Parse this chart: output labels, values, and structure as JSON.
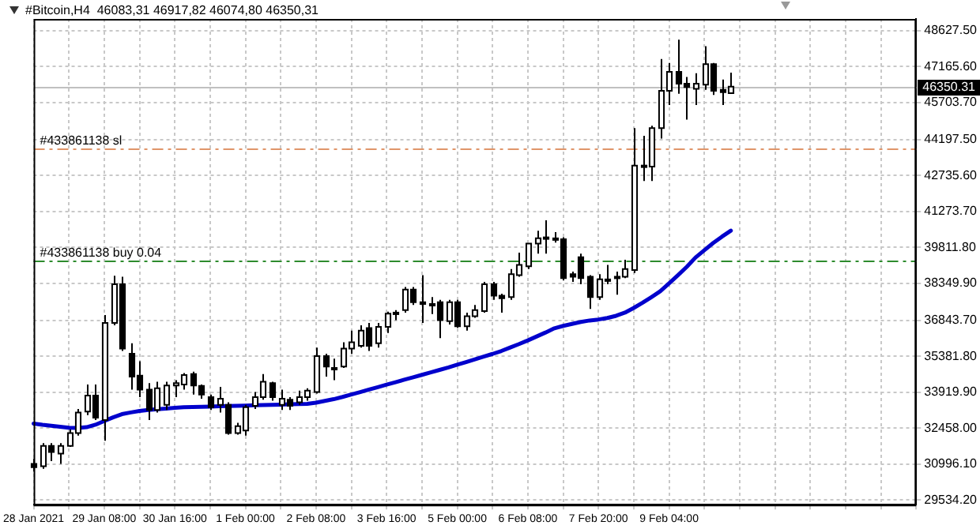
{
  "chart_data": {
    "type": "candlestick",
    "title": "#Bitcoin,H4  46083,31 46917,82 46074,80 46350,31",
    "categories": [
      "28 Jan 2021",
      null,
      null,
      null,
      null,
      null,
      null,
      null,
      "29 Jan 08:00",
      null,
      null,
      null,
      null,
      null,
      null,
      null,
      "30 Jan 16:00",
      null,
      null,
      null,
      null,
      null,
      null,
      null,
      "1 Feb 00:00",
      null,
      null,
      null,
      null,
      null,
      null,
      null,
      "2 Feb 08:00",
      null,
      null,
      null,
      null,
      null,
      null,
      null,
      "3 Feb 16:00",
      null,
      null,
      null,
      null,
      null,
      null,
      null,
      "5 Feb 00:00",
      null,
      null,
      null,
      null,
      null,
      null,
      null,
      "6 Feb 08:00",
      null,
      null,
      null,
      null,
      null,
      null,
      null,
      "7 Feb 20:00",
      null,
      null,
      null,
      null,
      null,
      null,
      null,
      "9 Feb 04:00",
      null,
      null,
      null,
      null,
      null,
      null,
      null,
      null,
      null,
      null,
      null,
      null,
      null,
      null,
      null,
      null,
      null,
      null,
      null,
      null,
      null,
      null,
      null,
      null,
      null,
      null,
      null,
      null
    ],
    "ohlc": [
      [
        31010,
        31220,
        30700,
        30870
      ],
      [
        30910,
        31850,
        30810,
        31740
      ],
      [
        31740,
        31850,
        31120,
        31490
      ],
      [
        31430,
        31850,
        31010,
        31740
      ],
      [
        31740,
        32410,
        31700,
        32260
      ],
      [
        32260,
        33240,
        32160,
        33100
      ],
      [
        33140,
        34240,
        32990,
        33790
      ],
      [
        33790,
        34240,
        32790,
        32890
      ],
      [
        32790,
        37060,
        31950,
        36740
      ],
      [
        36740,
        38660,
        36640,
        38310
      ],
      [
        38310,
        38620,
        35600,
        35700
      ],
      [
        35490,
        35910,
        34030,
        34560
      ],
      [
        34600,
        35180,
        33720,
        34030
      ],
      [
        34030,
        34290,
        32790,
        33200
      ],
      [
        33200,
        34350,
        33100,
        34080
      ],
      [
        33410,
        34350,
        33200,
        34200
      ],
      [
        34200,
        34410,
        33720,
        34290
      ],
      [
        34240,
        34700,
        34030,
        34620
      ],
      [
        34660,
        34760,
        33830,
        34200
      ],
      [
        34180,
        34240,
        33660,
        33830
      ],
      [
        33720,
        33830,
        33200,
        33310
      ],
      [
        33410,
        34140,
        33100,
        33660
      ],
      [
        33410,
        33510,
        32200,
        32260
      ],
      [
        32260,
        32680,
        32200,
        32540
      ],
      [
        32370,
        33410,
        32160,
        33310
      ],
      [
        33370,
        33930,
        33240,
        33720
      ],
      [
        33720,
        34660,
        33620,
        34350
      ],
      [
        34290,
        34350,
        33580,
        33720
      ],
      [
        33410,
        34030,
        33200,
        33660
      ],
      [
        33620,
        33720,
        33200,
        33370
      ],
      [
        33510,
        33990,
        33410,
        33720
      ],
      [
        33720,
        34080,
        33580,
        33990
      ],
      [
        33930,
        35740,
        33870,
        35390
      ],
      [
        35390,
        35490,
        34560,
        34970
      ],
      [
        34870,
        35290,
        34410,
        34910
      ],
      [
        34970,
        35950,
        34910,
        35700
      ],
      [
        35700,
        36430,
        35490,
        35950
      ],
      [
        35810,
        36640,
        35740,
        36430
      ],
      [
        36530,
        36740,
        35600,
        35810
      ],
      [
        35910,
        36740,
        35740,
        36580
      ],
      [
        36580,
        37200,
        36330,
        37120
      ],
      [
        37120,
        37260,
        36850,
        37160
      ],
      [
        37260,
        38200,
        37160,
        38100
      ],
      [
        38100,
        38200,
        37470,
        37580
      ],
      [
        37580,
        38680,
        36740,
        37510
      ],
      [
        37510,
        37790,
        37100,
        37470
      ],
      [
        37580,
        37680,
        36120,
        36850
      ],
      [
        36810,
        37680,
        36680,
        37580
      ],
      [
        37580,
        37680,
        36540,
        36600
      ],
      [
        36600,
        37160,
        36430,
        37010
      ],
      [
        37010,
        37470,
        36950,
        37260
      ],
      [
        37220,
        38410,
        37160,
        38310
      ],
      [
        38310,
        38410,
        37680,
        37850
      ],
      [
        37850,
        37930,
        37160,
        37740
      ],
      [
        37790,
        38930,
        37680,
        38720
      ],
      [
        38680,
        39600,
        38620,
        39100
      ],
      [
        39040,
        39970,
        38930,
        39970
      ],
      [
        39970,
        40490,
        39560,
        40180
      ],
      [
        40180,
        40910,
        39560,
        40220
      ],
      [
        40180,
        40430,
        40010,
        40140
      ],
      [
        40140,
        40220,
        38470,
        38560
      ],
      [
        38720,
        38830,
        38410,
        38620
      ],
      [
        39410,
        39560,
        38310,
        38560
      ],
      [
        38620,
        38680,
        37310,
        37790
      ],
      [
        37790,
        38720,
        37680,
        38510
      ],
      [
        38510,
        39100,
        38310,
        38450
      ],
      [
        38560,
        38830,
        37890,
        38620
      ],
      [
        38620,
        39310,
        38560,
        38930
      ],
      [
        38890,
        44660,
        38770,
        43140
      ],
      [
        43100,
        44350,
        42510,
        43140
      ],
      [
        43100,
        44760,
        42510,
        44660
      ],
      [
        44660,
        47470,
        44240,
        46180
      ],
      [
        46180,
        47310,
        45600,
        46950
      ],
      [
        46950,
        48260,
        46060,
        46470
      ],
      [
        46470,
        46740,
        45010,
        46330
      ],
      [
        46260,
        46890,
        45600,
        46470
      ],
      [
        46430,
        47990,
        46220,
        47260
      ],
      [
        47260,
        47310,
        46010,
        46180
      ],
      [
        46220,
        46640,
        45600,
        46120
      ],
      [
        46083.31,
        46917.82,
        46074.8,
        46350.31
      ],
      null,
      null,
      null,
      null,
      null,
      null,
      null,
      null,
      null,
      null,
      null,
      null,
      null,
      null,
      null,
      null,
      null,
      null,
      null,
      null,
      null
    ],
    "color": "#000000",
    "series": [
      {
        "type": "line",
        "color": "#0000cc",
        "values": [
          32650,
          32600,
          32560,
          32520,
          32480,
          32470,
          32500,
          32600,
          32750,
          32900,
          33030,
          33100,
          33160,
          33200,
          33230,
          33260,
          33290,
          33310,
          33320,
          33330,
          33340,
          33350,
          33360,
          33370,
          33380,
          33390,
          33400,
          33410,
          33420,
          33430,
          33440,
          33450,
          33500,
          33570,
          33640,
          33730,
          33830,
          33930,
          34030,
          34130,
          34230,
          34330,
          34430,
          34530,
          34630,
          34730,
          34830,
          34930,
          35040,
          35150,
          35260,
          35370,
          35480,
          35600,
          35740,
          35880,
          36030,
          36190,
          36350,
          36520,
          36620,
          36700,
          36780,
          36840,
          36880,
          36940,
          37030,
          37160,
          37350,
          37560,
          37790,
          38030,
          38350,
          38680,
          39020,
          39400,
          39700,
          39990,
          40250,
          40490,
          null,
          null,
          null,
          null,
          null,
          null,
          null,
          null,
          null,
          null,
          null,
          null,
          null,
          null,
          null,
          null,
          null,
          null,
          null,
          null,
          null
        ]
      }
    ],
    "ylim": [
      29350,
      49100
    ],
    "yticks": [
      {
        "value": 29534.2,
        "label": "29534.20"
      },
      {
        "value": 30996.1,
        "label": "30996.10"
      },
      {
        "value": 32458,
        "label": "32458.00"
      },
      {
        "value": 33919.9,
        "label": "33919.90"
      },
      {
        "value": 35381.8,
        "label": "35381.80"
      },
      {
        "value": 36843.7,
        "label": "36843.70"
      },
      {
        "value": 38349.9,
        "label": "38349.90"
      },
      {
        "value": 39811.8,
        "label": "39811.80"
      },
      {
        "value": 41273.7,
        "label": "41273.70"
      },
      {
        "value": 42735.6,
        "label": "42735.60"
      },
      {
        "value": 44197.5,
        "label": "44197.50"
      },
      {
        "value": 45703.7,
        "label": "45703.70"
      },
      {
        "value": 47165.6,
        "label": "47165.60"
      },
      {
        "value": 48627.5,
        "label": "48627.50"
      }
    ],
    "ref_lines": [
      {
        "axis": "y",
        "value": 43860,
        "label": "#433861138 sl",
        "color": "#e0956a",
        "line_style": "dashed"
      },
      {
        "axis": "y",
        "value": 39290,
        "label": "#433861138 buy 0.04",
        "color": "#2e8b2e",
        "line_style": "dashed"
      },
      {
        "axis": "y",
        "value": 46350.31,
        "label": "46350.31",
        "color": "#c0c0c0",
        "line_style": "solid"
      }
    ],
    "grid": true,
    "legend": false,
    "marker": "none"
  }
}
